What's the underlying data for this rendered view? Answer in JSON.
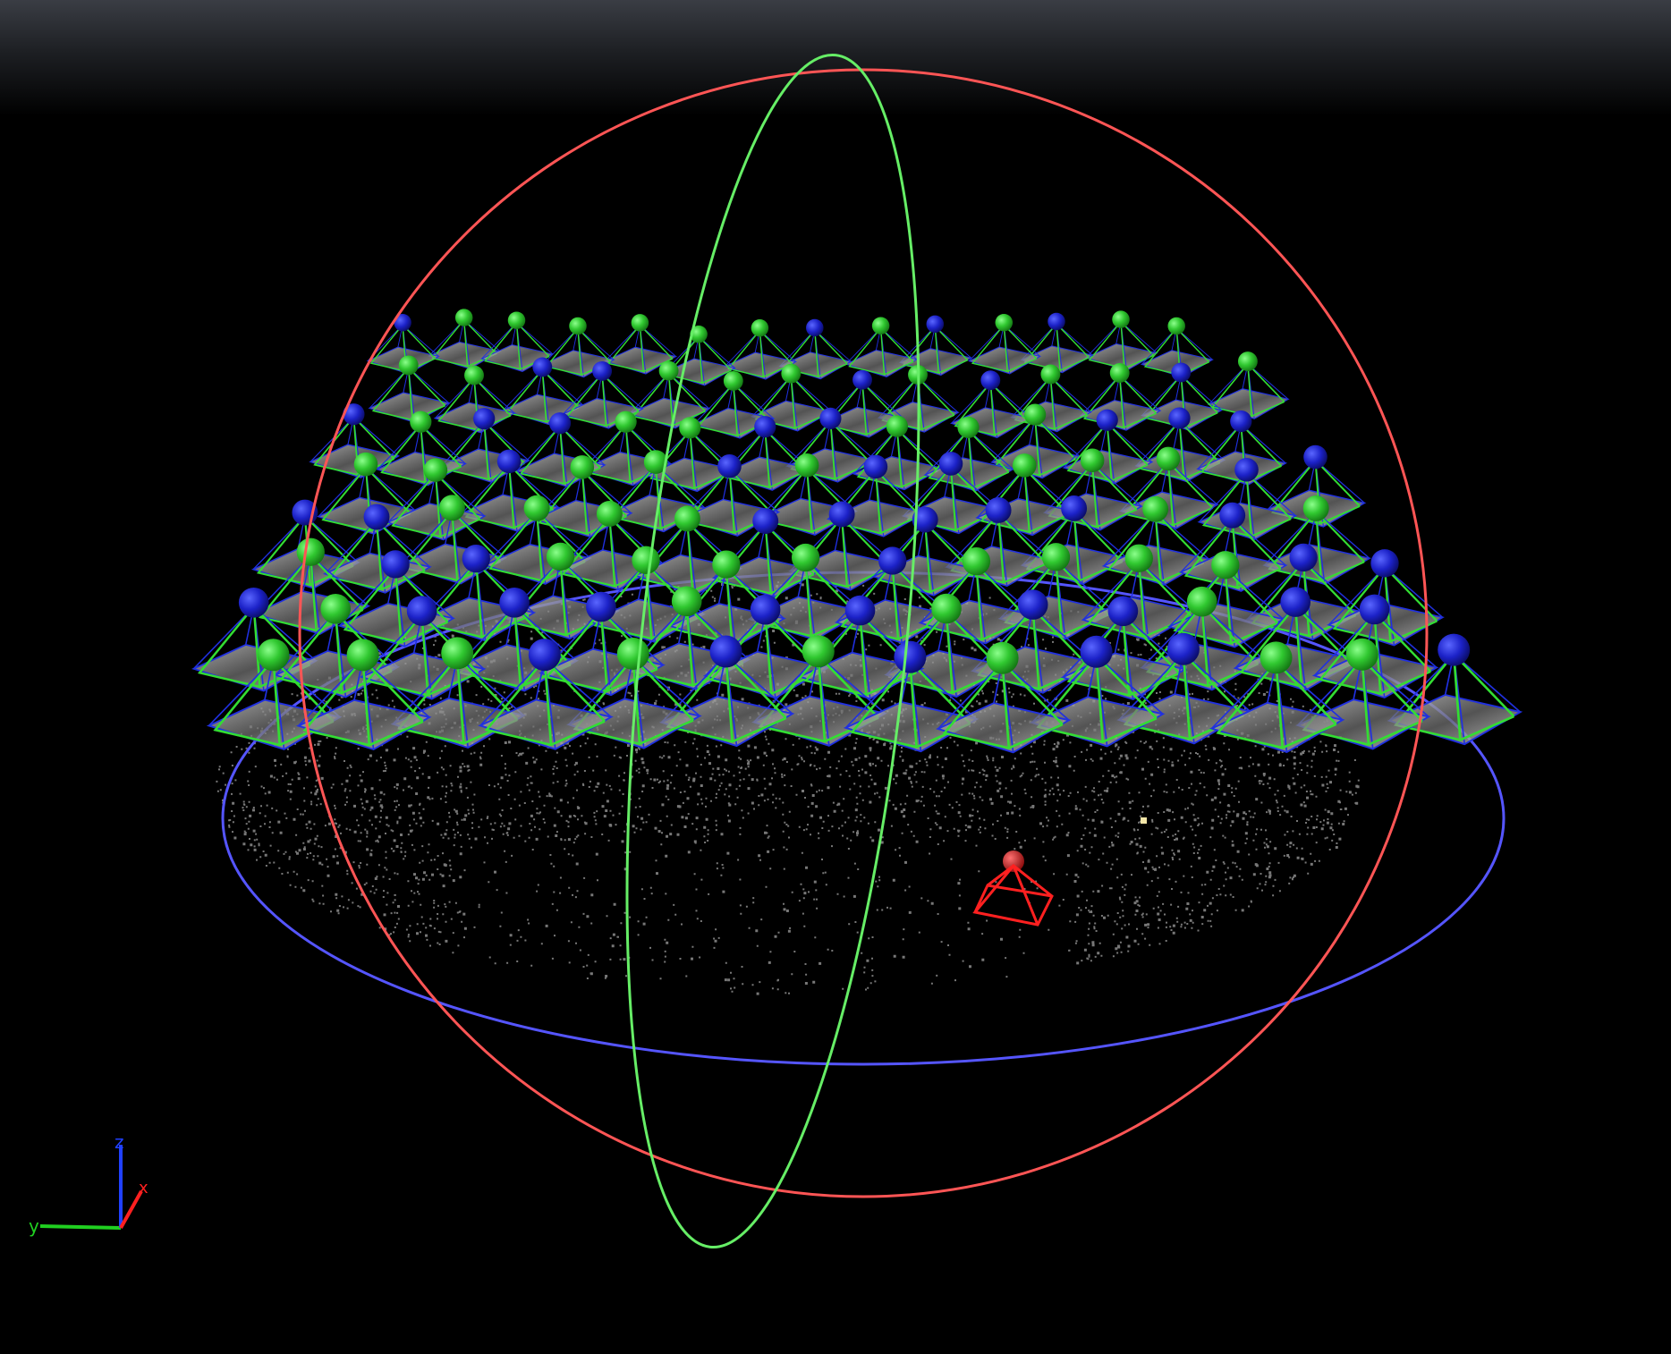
{
  "viewer": {
    "title": "",
    "background": "#000000",
    "top_gradient_color": "#3a3d44"
  },
  "scene": {
    "point_cloud_color": "#d8d8d8",
    "camera_frustum_green": "#33dd33",
    "camera_frustum_blue": "#2030e0",
    "camera_sphere_green": "#3ad13a",
    "camera_sphere_blue": "#1c20c0",
    "selected_camera_color": "#ff2020",
    "trackball_ring_x_color": "#ff5555",
    "trackball_ring_y_color": "#66ee66",
    "trackball_ring_z_color": "#5555ff",
    "camera_grid": {
      "rows": 8,
      "cols": 14
    }
  },
  "axes_gizmo": {
    "x_label": "x",
    "y_label": "y",
    "z_label": "z",
    "x_color": "#ff2020",
    "y_color": "#20d020",
    "z_color": "#2040ff",
    "icon": "axes-icon"
  }
}
